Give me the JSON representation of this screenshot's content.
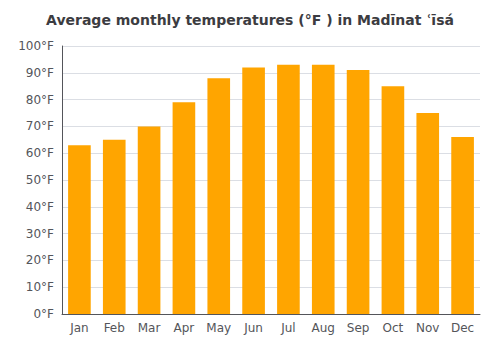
{
  "chart_data": {
    "type": "bar",
    "title": "Average monthly temperatures (°F ) in Madīnat ʿīsá",
    "categories": [
      "Jan",
      "Feb",
      "Mar",
      "Apr",
      "May",
      "Jun",
      "Jul",
      "Aug",
      "Sep",
      "Oct",
      "Nov",
      "Dec"
    ],
    "values": [
      63,
      65,
      70,
      79,
      88,
      92,
      93,
      93,
      91,
      85,
      75,
      66
    ],
    "color": "#FFA500",
    "ylim": [
      0,
      100
    ],
    "yticks": [
      {
        "value": 0,
        "label": "0°F"
      },
      {
        "value": 10,
        "label": "10°F"
      },
      {
        "value": 20,
        "label": "20°F"
      },
      {
        "value": 30,
        "label": "30°F"
      },
      {
        "value": 40,
        "label": "40°F"
      },
      {
        "value": 50,
        "label": "50°F"
      },
      {
        "value": 60,
        "label": "60°F"
      },
      {
        "value": 70,
        "label": "70°F"
      },
      {
        "value": 80,
        "label": "80°F"
      },
      {
        "value": 90,
        "label": "90°F"
      },
      {
        "value": 100,
        "label": "100°F"
      }
    ],
    "grid": true
  }
}
